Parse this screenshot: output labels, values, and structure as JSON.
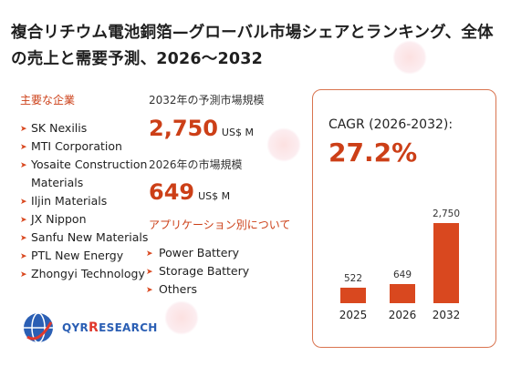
{
  "title": "複合リチウム電池銅箔—グローバル市場シェアとランキング、全体の売上と需要予測、2026〜2032",
  "companies_label": "主要な企業",
  "companies": [
    "SK Nexilis",
    "MTI Corporation",
    "Yosaite Construction",
    "Materials",
    "Iljin Materials",
    "JX Nippon",
    "Sanfu New Materials",
    "PTL New Energy",
    "Zhongyi Technology"
  ],
  "forecast_2032": {
    "label": "2032年の予測市場規模",
    "value": "2,750",
    "unit": "US$ M"
  },
  "market_2026": {
    "label": "2026年の市場規模",
    "value": "649",
    "unit": "US$ M"
  },
  "applications_label": "アプリケーション別について",
  "applications": [
    "Power Battery",
    "Storage Battery",
    "Others"
  ],
  "cagr": {
    "label": "CAGR (2026-2032):",
    "value": "27.2%"
  },
  "chart_data": {
    "type": "bar",
    "categories": [
      "2025",
      "2026",
      "2032"
    ],
    "values": [
      522,
      649,
      2750
    ],
    "value_labels": [
      "522",
      "649",
      "2,750"
    ],
    "ylim": [
      0,
      2750
    ],
    "color": "#d9481f"
  },
  "logo": {
    "brand_a": "QYR",
    "brand_b": "ESEARCH",
    "color": "#2b5fb4"
  }
}
